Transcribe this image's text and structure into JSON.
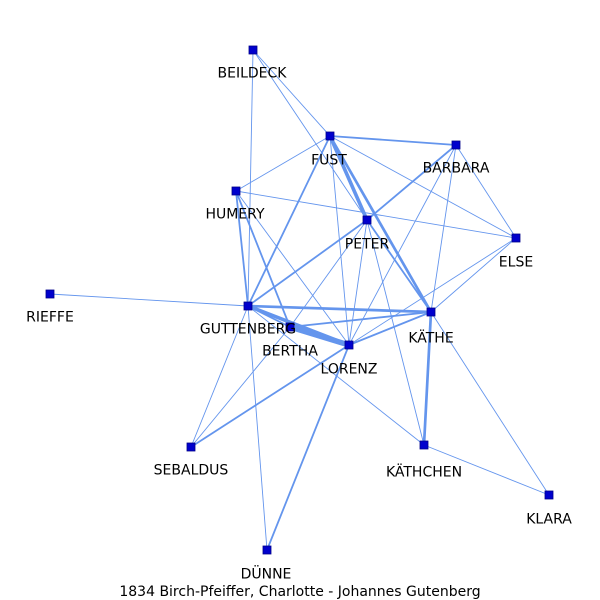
{
  "caption": "1834 Birch-Pfeiffer, Charlotte - Johannes Gutenberg",
  "colors": {
    "edge": "#6495ED",
    "node_fill": "#0000CD",
    "node_stroke": "#00008B",
    "label": "#000000",
    "background": "#FFFFFF"
  },
  "nodes": [
    {
      "id": "BEILDECK",
      "label": "BEILDECK"
    },
    {
      "id": "FUST",
      "label": "FUST"
    },
    {
      "id": "BARBARA",
      "label": "BARBARA"
    },
    {
      "id": "HUMERY",
      "label": "HUMERY"
    },
    {
      "id": "PETER",
      "label": "PETER"
    },
    {
      "id": "ELSE",
      "label": "ELSE"
    },
    {
      "id": "RIEFFE",
      "label": "RIEFFE"
    },
    {
      "id": "GUTTENBERG",
      "label": "GUTTENBERG"
    },
    {
      "id": "KÄTHE",
      "label": "KÄTHE"
    },
    {
      "id": "BERTHA",
      "label": "BERTHA"
    },
    {
      "id": "LORENZ",
      "label": "LORENZ"
    },
    {
      "id": "SEBALDUS",
      "label": "SEBALDUS"
    },
    {
      "id": "KÄTHCHEN",
      "label": "KÄTHCHEN"
    },
    {
      "id": "KLARA",
      "label": "KLARA"
    },
    {
      "id": "DÜNNE",
      "label": "DÜNNE"
    }
  ],
  "edges": [
    {
      "source": "BEILDECK",
      "target": "FUST",
      "weight": 1
    },
    {
      "source": "BEILDECK",
      "target": "PETER",
      "weight": 1
    },
    {
      "source": "BEILDECK",
      "target": "GUTTENBERG",
      "weight": 1
    },
    {
      "source": "FUST",
      "target": "BARBARA",
      "weight": 2
    },
    {
      "source": "FUST",
      "target": "PETER",
      "weight": 4
    },
    {
      "source": "FUST",
      "target": "KÄTHE",
      "weight": 3
    },
    {
      "source": "FUST",
      "target": "GUTTENBERG",
      "weight": 2
    },
    {
      "source": "FUST",
      "target": "HUMERY",
      "weight": 1
    },
    {
      "source": "FUST",
      "target": "ELSE",
      "weight": 1
    },
    {
      "source": "FUST",
      "target": "LORENZ",
      "weight": 1
    },
    {
      "source": "BARBARA",
      "target": "PETER",
      "weight": 2
    },
    {
      "source": "BARBARA",
      "target": "ELSE",
      "weight": 1
    },
    {
      "source": "BARBARA",
      "target": "KÄTHE",
      "weight": 1
    },
    {
      "source": "BARBARA",
      "target": "LORENZ",
      "weight": 1
    },
    {
      "source": "HUMERY",
      "target": "GUTTENBERG",
      "weight": 2
    },
    {
      "source": "HUMERY",
      "target": "BERTHA",
      "weight": 2
    },
    {
      "source": "HUMERY",
      "target": "LORENZ",
      "weight": 1
    },
    {
      "source": "HUMERY",
      "target": "ELSE",
      "weight": 1
    },
    {
      "source": "PETER",
      "target": "GUTTENBERG",
      "weight": 2
    },
    {
      "source": "PETER",
      "target": "KÄTHE",
      "weight": 2
    },
    {
      "source": "PETER",
      "target": "BERTHA",
      "weight": 1
    },
    {
      "source": "PETER",
      "target": "LORENZ",
      "weight": 1
    },
    {
      "source": "PETER",
      "target": "KÄTHCHEN",
      "weight": 1
    },
    {
      "source": "ELSE",
      "target": "KÄTHE",
      "weight": 1
    },
    {
      "source": "ELSE",
      "target": "LORENZ",
      "weight": 1
    },
    {
      "source": "RIEFFE",
      "target": "GUTTENBERG",
      "weight": 1
    },
    {
      "source": "GUTTENBERG",
      "target": "KÄTHE",
      "weight": 3
    },
    {
      "source": "GUTTENBERG",
      "target": "BERTHA",
      "weight": 2
    },
    {
      "source": "GUTTENBERG",
      "target": "LORENZ",
      "weight": 4
    },
    {
      "source": "GUTTENBERG",
      "target": "SEBALDUS",
      "weight": 1
    },
    {
      "source": "GUTTENBERG",
      "target": "DÜNNE",
      "weight": 1
    },
    {
      "source": "GUTTENBERG",
      "target": "KÄTHCHEN",
      "weight": 1
    },
    {
      "source": "KÄTHE",
      "target": "BERTHA",
      "weight": 2
    },
    {
      "source": "KÄTHE",
      "target": "LORENZ",
      "weight": 2
    },
    {
      "source": "KÄTHE",
      "target": "KÄTHCHEN",
      "weight": 3
    },
    {
      "source": "KÄTHE",
      "target": "KLARA",
      "weight": 1
    },
    {
      "source": "BERTHA",
      "target": "LORENZ",
      "weight": 6
    },
    {
      "source": "BERTHA",
      "target": "SEBALDUS",
      "weight": 1
    },
    {
      "source": "LORENZ",
      "target": "SEBALDUS",
      "weight": 2
    },
    {
      "source": "LORENZ",
      "target": "DÜNNE",
      "weight": 2
    },
    {
      "source": "KÄTHCHEN",
      "target": "KLARA",
      "weight": 1
    }
  ]
}
